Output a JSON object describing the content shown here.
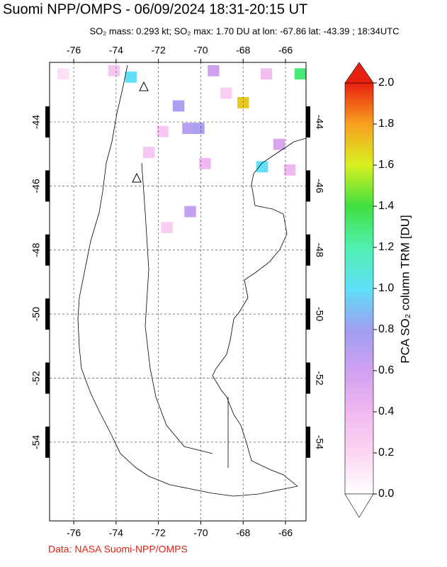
{
  "title": "Suomi NPP/OMPS - 06/09/2024 18:31-20:15 UT",
  "subtitle": "SO₂ mass: 0.293 kt; SO₂ max: 1.70 DU at lon: -67.86 lat: -43.39 ; 18:34UTC",
  "map": {
    "lonlim": [
      -77.14,
      -65.03
    ],
    "latlim": [
      -42.14,
      -56.46
    ],
    "lonticks": [
      -76,
      -74,
      -72,
      -70,
      -68,
      -66
    ],
    "latticks": [
      -44,
      -46,
      -48,
      -50,
      -52,
      -54
    ],
    "grid": true,
    "cells": [
      {
        "lon": -68.0,
        "lat": -43.4,
        "value": 1.7
      },
      {
        "lon": -67.1,
        "lat": -45.4,
        "value": 1.0
      },
      {
        "lon": -73.3,
        "lat": -42.6,
        "value": 1.0
      },
      {
        "lon": -71.05,
        "lat": -43.5,
        "value": 0.75
      },
      {
        "lon": -70.6,
        "lat": -44.2,
        "value": 0.7
      },
      {
        "lon": -70.1,
        "lat": -44.2,
        "value": 0.75
      },
      {
        "lon": -70.5,
        "lat": -46.8,
        "value": 0.65
      },
      {
        "lon": -69.4,
        "lat": -42.4,
        "value": 0.6
      },
      {
        "lon": -69.8,
        "lat": -45.3,
        "value": 0.4
      },
      {
        "lon": -65.8,
        "lat": -45.5,
        "value": 0.4
      },
      {
        "lon": -66.3,
        "lat": -44.7,
        "value": 0.55
      },
      {
        "lon": -66.9,
        "lat": -42.5,
        "value": 0.35
      },
      {
        "lon": -71.8,
        "lat": -44.3,
        "value": 0.3
      },
      {
        "lon": -76.5,
        "lat": -42.5,
        "value": 0.15
      },
      {
        "lon": -68.8,
        "lat": -43.1,
        "value": 0.25
      },
      {
        "lon": -71.6,
        "lat": -47.3,
        "value": 0.25
      },
      {
        "lon": -65.3,
        "lat": -42.5,
        "value": 1.3
      },
      {
        "lon": -74.1,
        "lat": -42.4,
        "value": 0.3
      },
      {
        "lon": -72.45,
        "lat": -44.95,
        "value": 0.3
      }
    ]
  },
  "colorbar": {
    "label": "PCA SO₂ column TRM [DU]",
    "lim": [
      0,
      2
    ],
    "ticks": [
      {
        "value": 0,
        "label": "0.0"
      },
      0.2,
      0.4,
      0.6,
      0.8,
      {
        "value": 1,
        "label": "1.0"
      },
      1.2,
      1.4,
      1.6,
      1.8,
      {
        "value": 2,
        "label": "2.0"
      }
    ],
    "colors": [
      "#ffffff",
      "#fcd5f0",
      "#f0b8f0",
      "#d0a0f0",
      "#9f9ff0",
      "#5fe0f8",
      "#50f0b0",
      "#40e040",
      "#d8f020",
      "#f8a020",
      "#e82010"
    ]
  },
  "footer": "Data: NASA Suomi-NPP/OMPS"
}
